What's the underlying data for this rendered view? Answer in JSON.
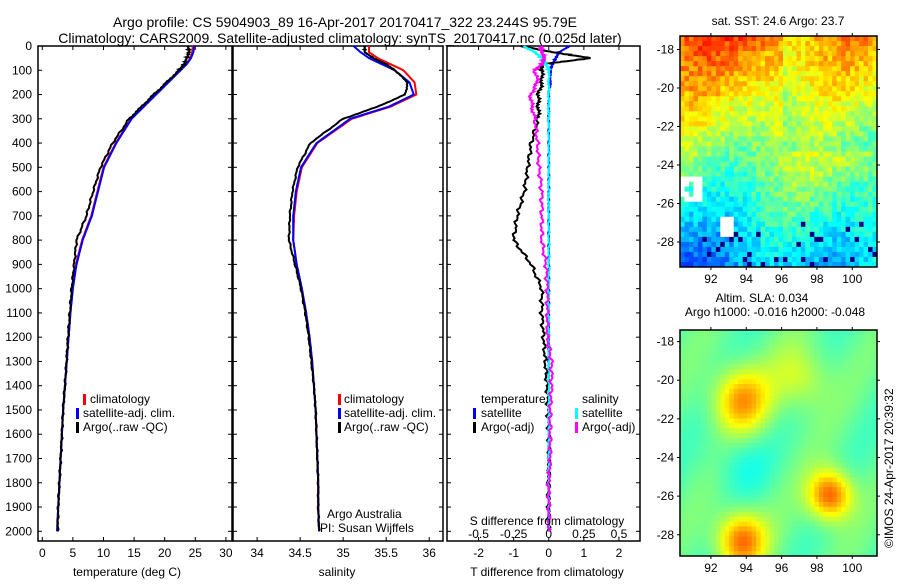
{
  "title_line1": "Argo profile: CS 5904903_89 16-Apr-2017 20170417_322 23.244S 95.79E",
  "title_line2": "Climatology: CARS2009. Satellite-adjusted climatology: synTS_20170417.nc (0.025d later)",
  "credit": "©IMOS 24-Apr-2017 20:39:32",
  "colors": {
    "climatology": "#ff0000",
    "satellite": "#0000ff",
    "argo": "#000000",
    "sal_satellite": "#00ffff",
    "sal_argo": "#ff00ff"
  },
  "chart_data": [
    {
      "type": "line",
      "xlabel": "temperature (deg C)",
      "ylabel": "",
      "xlim": [
        -0.7,
        31
      ],
      "ylim": [
        2040,
        0
      ],
      "xticks": [
        "0",
        "5",
        "10",
        "15",
        "20",
        "25",
        "30"
      ],
      "yticks": [
        "0",
        "100",
        "200",
        "300",
        "400",
        "500",
        "600",
        "700",
        "800",
        "900",
        "1000",
        "1100",
        "1200",
        "1300",
        "1400",
        "1500",
        "1600",
        "1700",
        "1800",
        "1900",
        "2000"
      ],
      "legend": [
        "climatology",
        "satellite-adj. clim.",
        "Argo(..raw -QC)"
      ],
      "depth": [
        0,
        25,
        50,
        75,
        100,
        150,
        200,
        250,
        300,
        400,
        500,
        600,
        700,
        800,
        900,
        1000,
        1100,
        1200,
        1300,
        1400,
        1500,
        1600,
        1700,
        1800,
        1900,
        2000
      ],
      "series": [
        {
          "name": "climatology",
          "values": [
            24.6,
            24.5,
            24.2,
            23.5,
            22.5,
            20.5,
            18.5,
            16.5,
            14.5,
            12,
            10,
            9,
            8,
            6.5,
            5.5,
            4.9,
            4.6,
            4.3,
            4.0,
            3.7,
            3.4,
            3.2,
            3.0,
            2.8,
            2.6,
            2.5
          ]
        },
        {
          "name": "satellite-adj. clim.",
          "values": [
            24.8,
            24.7,
            24.3,
            23.6,
            22.6,
            20.6,
            18.6,
            16.6,
            14.6,
            12.1,
            10.1,
            9.1,
            8.1,
            6.6,
            5.6,
            5.0,
            4.6,
            4.3,
            4.0,
            3.7,
            3.4,
            3.2,
            3.0,
            2.8,
            2.6,
            2.4
          ]
        },
        {
          "name": "Argo(..raw -QC)",
          "values": [
            23.8,
            24.0,
            23.6,
            23.2,
            22.3,
            20.3,
            18.2,
            16.2,
            14.2,
            11.5,
            9.5,
            8.3,
            7.2,
            5.6,
            5.2,
            4.8,
            4.5,
            4.2,
            3.95,
            3.7,
            3.4,
            3.2,
            3.0,
            2.8,
            2.6,
            2.5
          ]
        }
      ]
    },
    {
      "type": "line",
      "xlabel": "salinity",
      "xlim": [
        33.72,
        36.16
      ],
      "ylim": [
        2040,
        0
      ],
      "xticks": [
        "34",
        "34.5",
        "35",
        "35.5",
        "36"
      ],
      "legend": [
        "climatology",
        "satellite-adj. clim.",
        "Argo(..raw -QC)"
      ],
      "annotation": [
        "Argo Australia",
        "PI: Susan Wijffels"
      ],
      "depth": [
        0,
        25,
        50,
        75,
        100,
        150,
        200,
        250,
        300,
        400,
        500,
        600,
        700,
        800,
        900,
        1000,
        1100,
        1200,
        1300,
        1400,
        1500,
        1600,
        1700,
        1800,
        1900,
        2000
      ],
      "series": [
        {
          "name": "climatology",
          "values": [
            35.3,
            35.3,
            35.4,
            35.55,
            35.7,
            35.83,
            35.85,
            35.55,
            35.1,
            34.7,
            34.52,
            34.46,
            34.43,
            34.42,
            34.46,
            34.52,
            34.57,
            34.61,
            34.64,
            34.66,
            34.68,
            34.69,
            34.7,
            34.71,
            34.71,
            34.72
          ]
        },
        {
          "name": "satellite-adj. clim.",
          "values": [
            35.12,
            35.2,
            35.3,
            35.45,
            35.6,
            35.77,
            35.82,
            35.53,
            35.08,
            34.69,
            34.51,
            34.45,
            34.42,
            34.42,
            34.46,
            34.52,
            34.57,
            34.61,
            34.64,
            34.66,
            34.68,
            34.69,
            34.7,
            34.71,
            34.71,
            34.72
          ]
        },
        {
          "name": "Argo(..raw -QC)",
          "values": [
            35.25,
            35.25,
            35.35,
            35.5,
            35.6,
            35.75,
            35.72,
            35.4,
            35.0,
            34.62,
            34.47,
            34.41,
            34.38,
            34.37,
            34.44,
            34.51,
            34.56,
            34.6,
            34.63,
            34.66,
            34.68,
            34.69,
            34.7,
            34.71,
            34.71,
            34.72
          ]
        }
      ]
    },
    {
      "type": "line",
      "xlabel": "T difference from climatology",
      "x2label": "S difference from climatology",
      "xlim": [
        -2.9,
        2.6
      ],
      "x2lim": [
        -0.725,
        0.65
      ],
      "ylim": [
        2040,
        0
      ],
      "xticks": [
        "-2",
        "-1",
        "0",
        "1",
        "2"
      ],
      "x2ticks": [
        "-0.5",
        "-0.25",
        "0",
        "0.25",
        "0.5"
      ],
      "legend_temperature_title": "temperature",
      "legend_salinity_title": "salinity",
      "legend": [
        "satellite",
        "Argo(-adj)",
        "satellite",
        "Argo(-adj)"
      ],
      "depth": [
        0,
        25,
        50,
        75,
        100,
        150,
        200,
        250,
        300,
        400,
        500,
        600,
        700,
        800,
        900,
        1000,
        1100,
        1200,
        1300,
        1400,
        1500,
        1600,
        1700,
        1800,
        1900,
        2000
      ],
      "series": [
        {
          "name": "T satellite",
          "values": [
            0.6,
            0.3,
            0.2,
            0.1,
            0.05,
            0.05,
            0,
            0,
            0,
            0,
            0,
            0,
            0,
            0,
            0,
            0,
            0,
            0,
            0,
            0,
            0,
            0,
            0,
            0,
            0,
            0
          ]
        },
        {
          "name": "T Argo(-adj)",
          "values": [
            -0.8,
            0.1,
            1.2,
            -0.2,
            -0.2,
            -0.2,
            -0.3,
            -0.3,
            -0.3,
            -0.5,
            -0.6,
            -0.7,
            -0.9,
            -1.0,
            -0.5,
            -0.2,
            -0.2,
            -0.15,
            -0.1,
            -0.05,
            -0.02,
            0,
            0,
            0,
            0,
            0
          ]
        },
        {
          "name": "S satellite",
          "values": [
            -0.18,
            -0.1,
            -0.05,
            -0.02,
            0,
            0,
            0,
            0,
            0,
            0,
            0,
            0,
            0,
            0,
            0,
            0,
            0,
            0,
            0,
            0,
            0,
            0,
            0,
            0,
            0,
            0
          ]
        },
        {
          "name": "S Argo(-adj)",
          "values": [
            -0.05,
            -0.05,
            -0.03,
            -0.05,
            -0.1,
            -0.08,
            -0.13,
            -0.12,
            -0.1,
            -0.08,
            -0.07,
            -0.05,
            -0.05,
            -0.05,
            -0.02,
            -0.01,
            -0.01,
            -0.01,
            0.02,
            0.02,
            0.01,
            0.01,
            0.01,
            0,
            0,
            0
          ]
        }
      ]
    },
    {
      "type": "heatmap",
      "title": "sat. SST: 24.6 Argo: 23.7",
      "xlim": [
        90.25,
        101.4
      ],
      "ylim": [
        -29.3,
        -17.3
      ],
      "xticks": [
        "92",
        "94",
        "96",
        "98",
        "100"
      ],
      "yticks": [
        "-18",
        "-20",
        "-22",
        "-24",
        "-26",
        "-28"
      ]
    },
    {
      "type": "heatmap",
      "title_line1": "Altim. SLA: 0.034",
      "title_line2": "Argo h1000: -0.016 h2000: -0.048",
      "xlim": [
        90.25,
        101.4
      ],
      "ylim": [
        -29.1,
        -17.4
      ],
      "xticks": [
        "92",
        "94",
        "96",
        "98",
        "100"
      ],
      "yticks": [
        "-18",
        "-20",
        "-22",
        "-24",
        "-26",
        "-28"
      ]
    }
  ]
}
